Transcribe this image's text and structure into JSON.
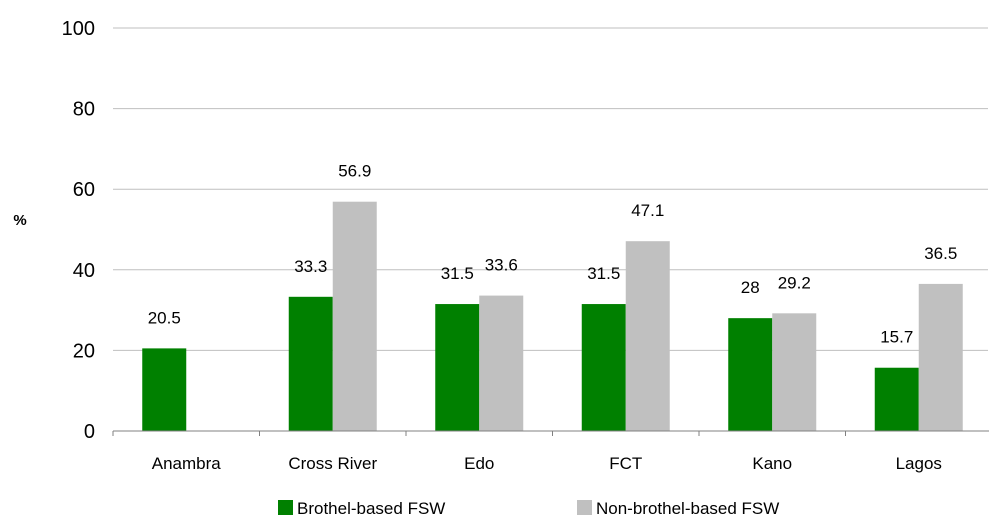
{
  "chart_data": {
    "type": "bar",
    "title": "",
    "xlabel": "",
    "ylabel": "%",
    "ylim": [
      0,
      100
    ],
    "yticks": [
      0,
      20,
      40,
      60,
      80,
      100
    ],
    "grid": true,
    "legend_position": "bottom",
    "categories": [
      "Anambra",
      "Cross River",
      "Edo",
      "FCT",
      "Kano",
      "Lagos"
    ],
    "series": [
      {
        "name": "Brothel-based FSW",
        "color": "#008000",
        "values": [
          20.5,
          33.3,
          31.5,
          31.5,
          28,
          15.7
        ],
        "labels": [
          "20.5",
          "33.3",
          "31.5",
          "31.5",
          "28",
          "15.7"
        ]
      },
      {
        "name": "Non-brothel-based FSW",
        "color": "#c0c0c0",
        "values": [
          null,
          56.9,
          33.6,
          47.1,
          29.2,
          36.5
        ],
        "labels": [
          "",
          "56.9",
          "33.6",
          "47.1",
          "29.2",
          "36.5"
        ]
      }
    ]
  }
}
